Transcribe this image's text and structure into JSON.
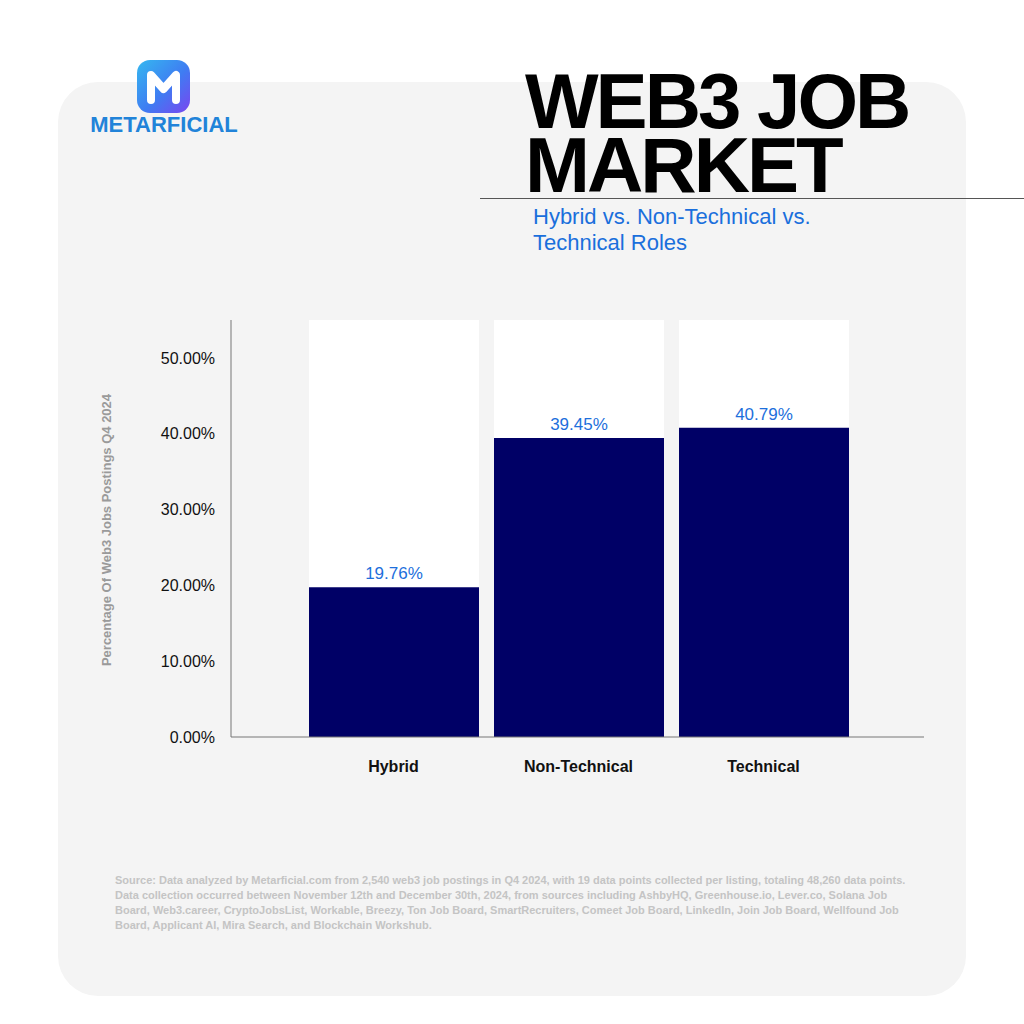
{
  "chart_data": {
    "type": "bar",
    "title": "WEB3 JOB MARKET",
    "subtitle": "Hybrid vs. Non-Technical vs. Technical Roles",
    "brand": "METARFICIAL",
    "y_label": "Percentage Of Web3 Jobs Postings Q4 2024",
    "categories": [
      "Hybrid",
      "Non-Technical",
      "Technical"
    ],
    "values": [
      19.76,
      39.45,
      40.79
    ],
    "value_labels": [
      "19.76%",
      "39.45%",
      "40.79%"
    ],
    "data_labels": true,
    "color": "#000066",
    "ylim": [
      0,
      55
    ],
    "yticks": [
      {
        "value": 0,
        "label": "0.00%"
      },
      {
        "value": 10,
        "label": "10.00%"
      },
      {
        "value": 20,
        "label": "20.00%"
      },
      {
        "value": 30,
        "label": "30.00%"
      },
      {
        "value": 40,
        "label": "40.00%"
      },
      {
        "value": 50,
        "label": "50.00%"
      }
    ],
    "grid": false,
    "source": "Source: Data analyzed by Metarficial.com from 2,540 web3 job postings in Q4 2024, with 19 data points collected per listing, totaling 48,260 data points. Data collection occurred between November 12th and December 30th, 2024, from sources including AshbyHQ, Greenhouse.io, Lever.co, Solana Job Board, Web3.career, CryptoJobsList, Workable, Breezy, Ton Job Board, SmartRecruiters, Comeet Job Board, LinkedIn, Join Job Board, Wellfound Job Board, Applicant AI, Mira Search, and Blockchain Workshub."
  }
}
